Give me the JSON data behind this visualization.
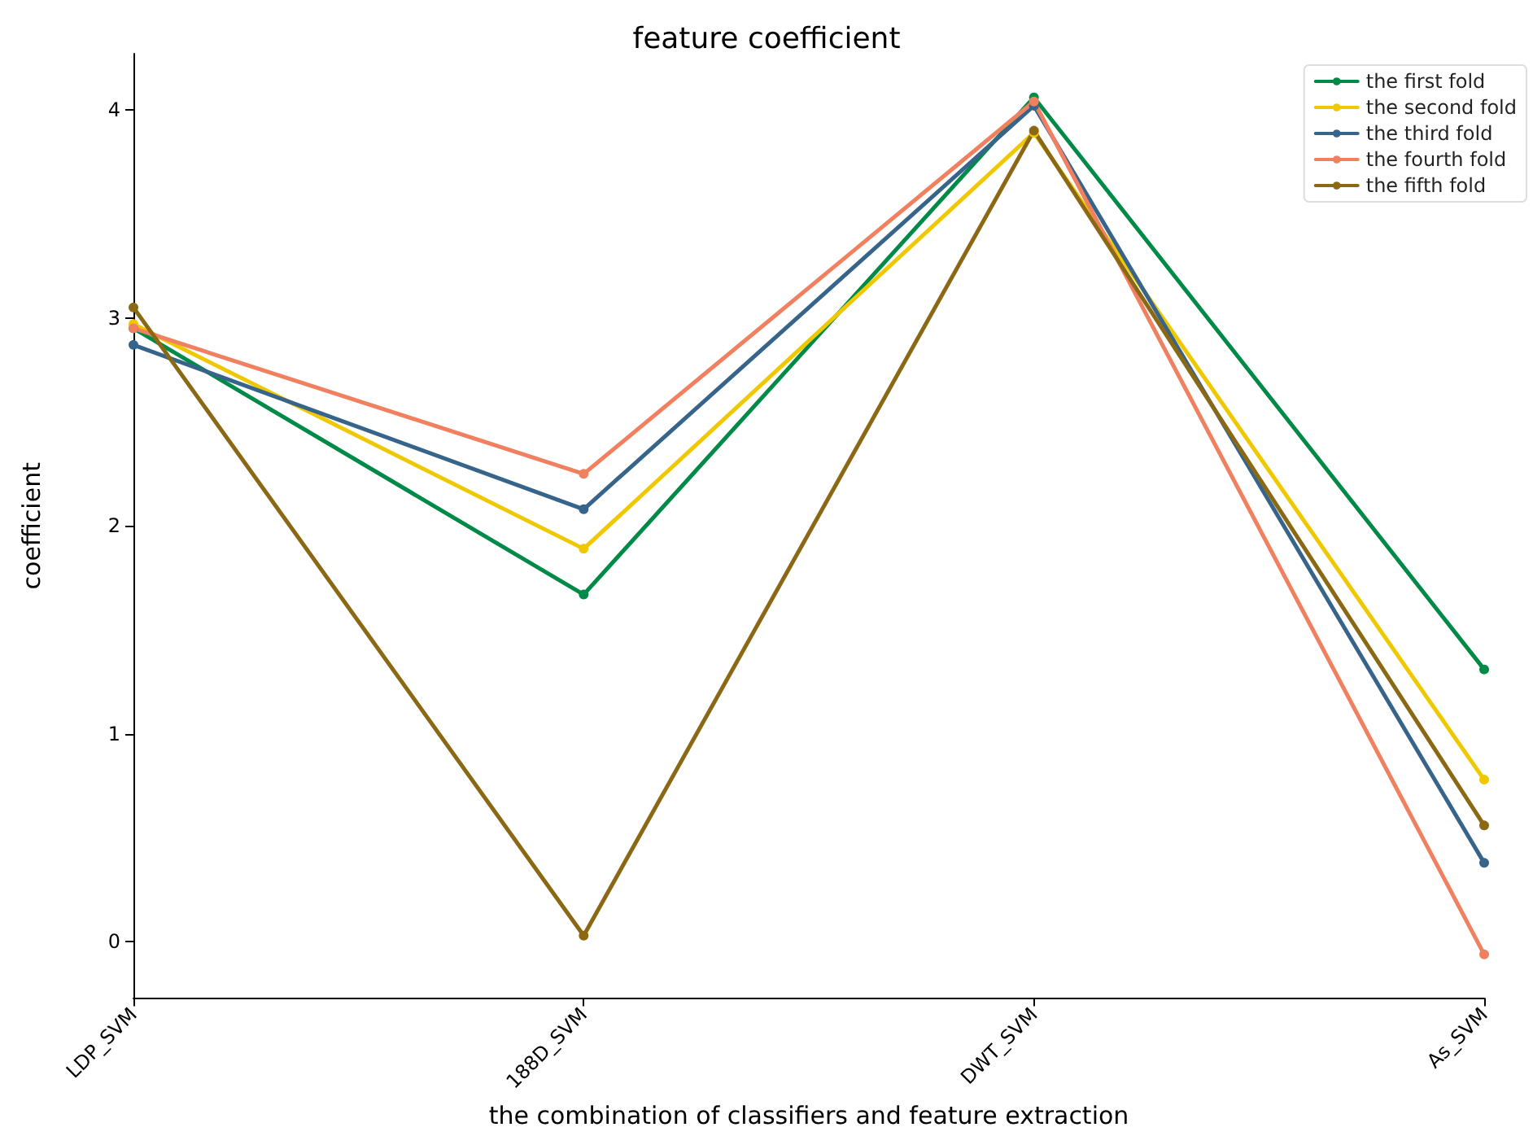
{
  "chart_data": {
    "type": "line",
    "title": "feature coefficient",
    "xlabel": "the combination of classifiers and feature extraction",
    "ylabel": "coefficient",
    "categories": [
      "LDP_SVM",
      "188D_SVM",
      "DWT_SVM",
      "As_SVM"
    ],
    "series": [
      {
        "name": "the first fold",
        "color": "#008a47",
        "values": [
          2.95,
          1.67,
          4.06,
          1.31
        ]
      },
      {
        "name": "the second fold",
        "color": "#f0c800",
        "values": [
          2.97,
          1.89,
          3.89,
          0.78
        ]
      },
      {
        "name": "the third fold",
        "color": "#36648b",
        "values": [
          2.87,
          2.08,
          4.02,
          0.38
        ]
      },
      {
        "name": "the fourth fold",
        "color": "#f08060",
        "values": [
          2.95,
          2.25,
          4.04,
          -0.06
        ]
      },
      {
        "name": "the fifth fold",
        "color": "#8b6914",
        "values": [
          3.05,
          0.03,
          3.9,
          0.56
        ]
      }
    ],
    "ylim": [
      -0.27,
      4.27
    ],
    "yticks": [
      0,
      1,
      2,
      3,
      4
    ],
    "grid": false,
    "legend": "top right",
    "marker": "circle",
    "line_style": "solid"
  }
}
